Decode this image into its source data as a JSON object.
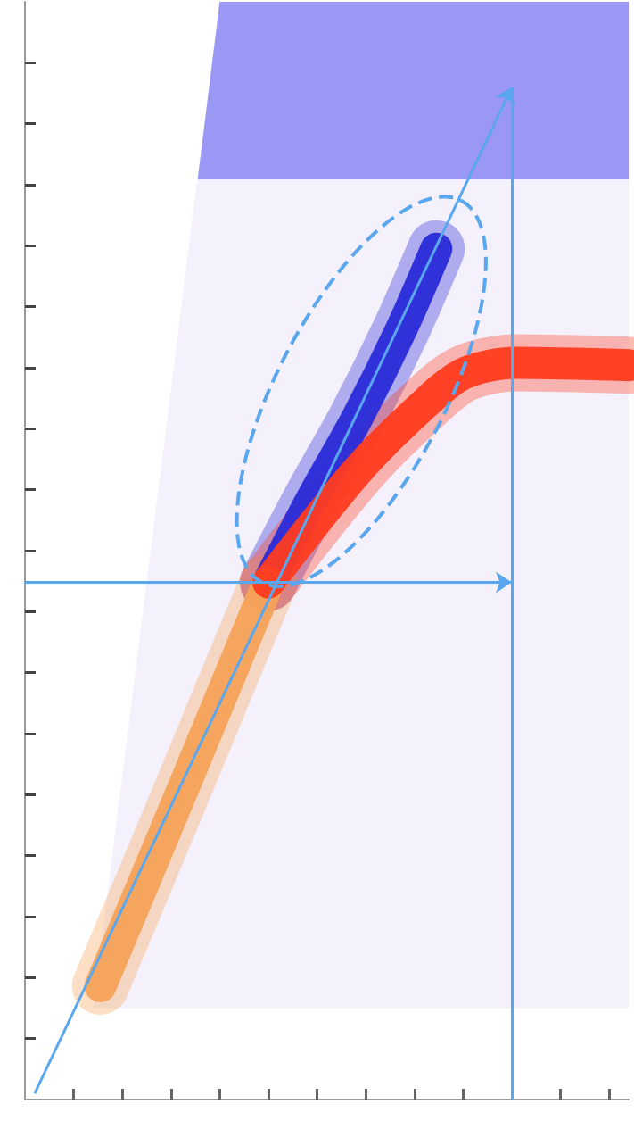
{
  "chart_data": {
    "type": "density",
    "xlim": [
      0,
      12.4
    ],
    "ylim": [
      0,
      18
    ],
    "xticks": [
      1,
      2,
      3,
      4,
      5,
      6,
      7,
      8,
      9,
      10,
      11,
      12
    ],
    "yticks": [
      1,
      2,
      3,
      4,
      5,
      6,
      7,
      8,
      9,
      10,
      11,
      12,
      13,
      14,
      15,
      16,
      17
    ],
    "tick_labels": false,
    "grid": false,
    "series": [
      {
        "type": "region",
        "color": "#f2eefb",
        "values": [
          [
            4.0,
            18
          ],
          [
            12.4,
            18
          ],
          [
            12.4,
            1.5
          ],
          [
            1.4,
            1.5
          ]
        ]
      },
      {
        "type": "region",
        "color": "#8b87f2",
        "values": [
          [
            4.0,
            18
          ],
          [
            12.4,
            18
          ],
          [
            12.4,
            15.1
          ],
          [
            3.55,
            15.1
          ]
        ]
      },
      {
        "type": "line",
        "color": "#2a2ad8",
        "values": [
          [
            5.0,
            8.48
          ],
          [
            5.9,
            9.86
          ],
          [
            6.82,
            11.17
          ],
          [
            7.73,
            12.63
          ],
          [
            8.45,
            13.95
          ]
        ]
      },
      {
        "type": "line",
        "color": "#f5a25a",
        "values": [
          [
            1.55,
            1.86
          ],
          [
            3.3,
            5.2
          ],
          [
            5.0,
            8.48
          ]
        ]
      },
      {
        "type": "line",
        "color": "#ff3b1f",
        "values": [
          [
            5.0,
            8.48
          ],
          [
            6.82,
            10.3
          ],
          [
            8.09,
            11.32
          ],
          [
            9.0,
            11.9
          ],
          [
            10.09,
            12.08
          ],
          [
            12.4,
            12.04
          ]
        ]
      }
    ],
    "annotations": [
      {
        "type": "arrow",
        "color": "#5aa7ee",
        "line_style": "solid",
        "from": [
          0,
          8.48
        ],
        "to": [
          10.0,
          8.48
        ]
      },
      {
        "type": "line",
        "color": "#5aa7ee",
        "line_style": "solid",
        "from": [
          10.0,
          0
        ],
        "to": [
          10.0,
          16.6
        ]
      },
      {
        "type": "arrow",
        "color": "#5aa7ee",
        "line_style": "solid",
        "from": [
          0.2,
          0.1
        ],
        "to": [
          10.0,
          16.6
        ]
      },
      {
        "type": "ellipse",
        "color": "#5aa7ee",
        "line_style": "dashed",
        "center": [
          6.91,
          11.61
        ],
        "axis1": [
          2.05,
          3.13
        ],
        "axis2": [
          1.53,
          -0.64
        ]
      }
    ]
  }
}
